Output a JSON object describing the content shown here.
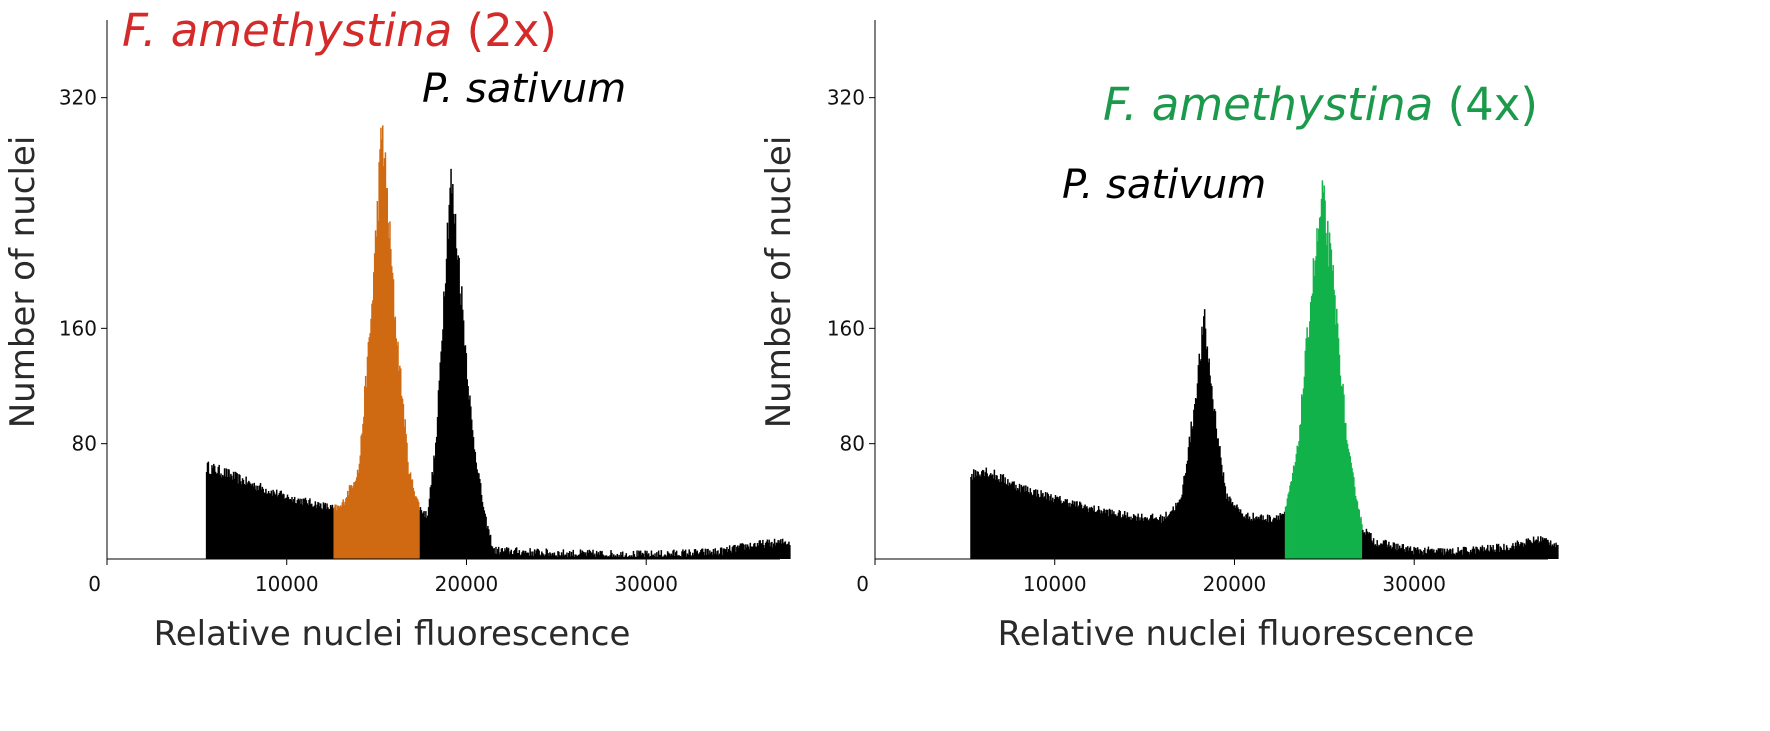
{
  "chart_data": [
    {
      "type": "histogram",
      "xlabel": "Relative nuclei fluorescence",
      "ylabel": "Number of nuclei",
      "xlim": [
        0,
        38000
      ],
      "ylim": [
        0,
        360
      ],
      "x_ticks": [
        0,
        10000,
        20000,
        30000
      ],
      "y_ticks": [
        80,
        160,
        320
      ],
      "x_tick_labels": [
        "0",
        "10000",
        "20000",
        "30000"
      ],
      "y_tick_labels": [
        "80",
        "160",
        "320"
      ],
      "annotations": [
        {
          "text_italic": "F. amethystina",
          "text_plain": " (2x)",
          "color": "#d42a2a"
        },
        {
          "text_italic": "P. sativum",
          "text_plain": "",
          "color": "#000000"
        }
      ],
      "series": [
        {
          "color": "#000000",
          "range": [
            5500,
            12600
          ]
        },
        {
          "color": "#d06a12",
          "range": [
            12600,
            17400
          ],
          "peak_x": 15300,
          "peak_y": 300
        },
        {
          "color": "#000000",
          "range": [
            17400,
            38000
          ],
          "peak_x": 19100,
          "peak_y": 265
        }
      ],
      "profile": [
        [
          5500,
          0
        ],
        [
          5520,
          64
        ],
        [
          6500,
          60
        ],
        [
          8000,
          52
        ],
        [
          10000,
          43
        ],
        [
          12000,
          37
        ],
        [
          12600,
          35
        ],
        [
          13000,
          36
        ],
        [
          14000,
          62
        ],
        [
          14700,
          170
        ],
        [
          15300,
          300
        ],
        [
          16000,
          170
        ],
        [
          16800,
          60
        ],
        [
          17400,
          35
        ],
        [
          17800,
          30
        ],
        [
          18300,
          80
        ],
        [
          18800,
          200
        ],
        [
          19100,
          265
        ],
        [
          19600,
          200
        ],
        [
          20300,
          90
        ],
        [
          21000,
          30
        ],
        [
          21500,
          6
        ],
        [
          25000,
          4
        ],
        [
          30000,
          3
        ],
        [
          34000,
          5
        ],
        [
          36000,
          10
        ],
        [
          38000,
          12
        ]
      ]
    },
    {
      "type": "histogram",
      "xlabel": "Relative nuclei fluorescence",
      "ylabel": "Number of nuclei",
      "xlim": [
        0,
        38000
      ],
      "ylim": [
        0,
        360
      ],
      "x_ticks": [
        0,
        10000,
        20000,
        30000
      ],
      "y_ticks": [
        80,
        160,
        320
      ],
      "x_tick_labels": [
        "0",
        "10000",
        "20000",
        "30000"
      ],
      "y_tick_labels": [
        "80",
        "160",
        "320"
      ],
      "annotations": [
        {
          "text_italic": "F. amethystina",
          "text_plain": " (4x)",
          "color": "#1a9a4a"
        },
        {
          "text_italic": "P. sativum",
          "text_plain": "",
          "color": "#000000"
        }
      ],
      "series": [
        {
          "color": "#000000",
          "range": [
            5300,
            22800
          ],
          "peak_x": 18300,
          "peak_y": 165
        },
        {
          "color": "#13b24a",
          "range": [
            22800,
            27100
          ],
          "peak_x": 24900,
          "peak_y": 250
        },
        {
          "color": "#000000",
          "range": [
            27100,
            38000
          ]
        }
      ],
      "profile": [
        [
          5300,
          0
        ],
        [
          5320,
          58
        ],
        [
          6000,
          62
        ],
        [
          8000,
          50
        ],
        [
          10000,
          42
        ],
        [
          12000,
          35
        ],
        [
          14000,
          30
        ],
        [
          16000,
          28
        ],
        [
          17000,
          40
        ],
        [
          17700,
          100
        ],
        [
          18300,
          165
        ],
        [
          18800,
          110
        ],
        [
          19500,
          45
        ],
        [
          20500,
          30
        ],
        [
          22000,
          28
        ],
        [
          22800,
          32
        ],
        [
          23500,
          75
        ],
        [
          24300,
          190
        ],
        [
          24900,
          250
        ],
        [
          25500,
          190
        ],
        [
          26300,
          75
        ],
        [
          27100,
          22
        ],
        [
          27800,
          12
        ],
        [
          30000,
          6
        ],
        [
          32000,
          5
        ],
        [
          35000,
          8
        ],
        [
          37000,
          14
        ],
        [
          38000,
          10
        ]
      ]
    }
  ]
}
